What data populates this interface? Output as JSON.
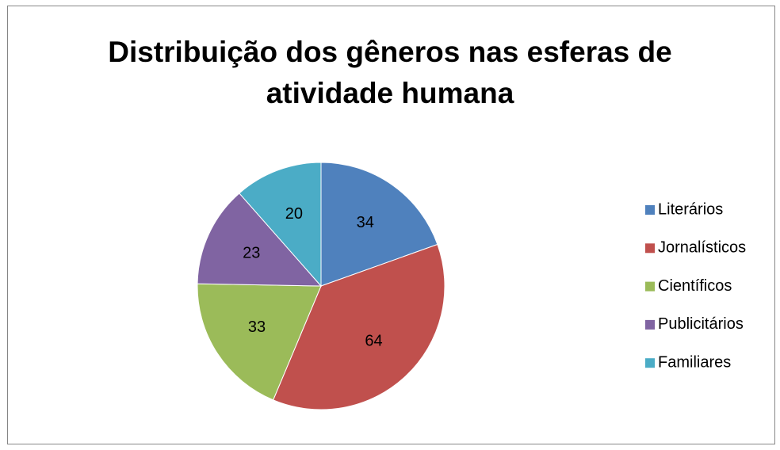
{
  "chart_data": {
    "type": "pie",
    "title": "Distribuição dos gêneros nas esferas de atividade humana",
    "categories": [
      "Literários",
      "Jornalísticos",
      "Científicos",
      "Publicitários",
      "Familiares"
    ],
    "values": [
      34,
      64,
      33,
      23,
      20
    ],
    "colors": [
      "#4f81bd",
      "#c0504d",
      "#9bbb59",
      "#8064a2",
      "#4bacc6"
    ],
    "legend": "right"
  }
}
